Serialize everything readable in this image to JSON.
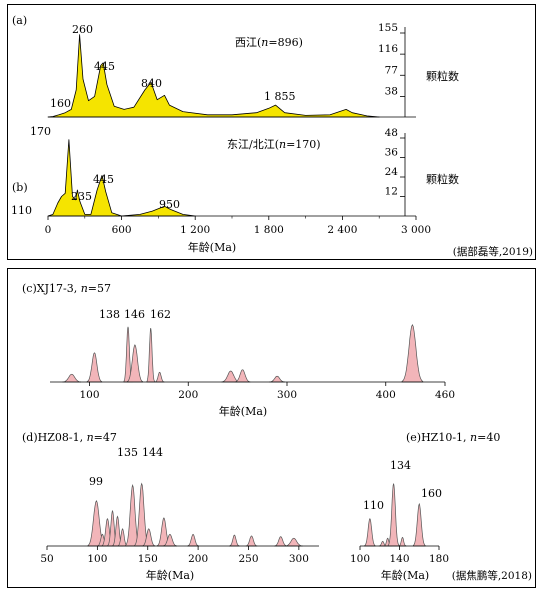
{
  "chart_data": [
    {
      "panel_id": "(a)",
      "type": "area",
      "title": "西江(n=896)",
      "fill": "#f5e400",
      "stroke": "#000000",
      "xlim": [
        0,
        3000
      ],
      "ylabel": "颗粒数",
      "y_ticks": [
        38,
        77,
        116,
        155
      ],
      "ylim": [
        0,
        155
      ],
      "peaks": [
        {
          "label": "160",
          "age": 160
        },
        {
          "label": "260",
          "age": 260
        },
        {
          "label": "445",
          "age": 445
        },
        {
          "label": "840",
          "age": 840
        },
        {
          "label": "1 855",
          "age": 1855
        }
      ],
      "curve": [
        [
          0,
          0
        ],
        [
          40,
          1
        ],
        [
          90,
          4
        ],
        [
          140,
          8
        ],
        [
          190,
          14
        ],
        [
          230,
          50
        ],
        [
          258,
          152
        ],
        [
          285,
          70
        ],
        [
          330,
          30
        ],
        [
          380,
          38
        ],
        [
          430,
          95
        ],
        [
          450,
          100
        ],
        [
          480,
          60
        ],
        [
          540,
          20
        ],
        [
          620,
          14
        ],
        [
          700,
          18
        ],
        [
          790,
          50
        ],
        [
          840,
          64
        ],
        [
          890,
          32
        ],
        [
          950,
          40
        ],
        [
          990,
          22
        ],
        [
          1100,
          10
        ],
        [
          1300,
          4
        ],
        [
          1500,
          4
        ],
        [
          1700,
          8
        ],
        [
          1800,
          16
        ],
        [
          1855,
          22
        ],
        [
          1930,
          8
        ],
        [
          2100,
          3
        ],
        [
          2300,
          4
        ],
        [
          2430,
          14
        ],
        [
          2480,
          8
        ],
        [
          2600,
          2
        ],
        [
          2700,
          0
        ]
      ]
    },
    {
      "panel_id": "(b)",
      "type": "area",
      "title": "东江/北江(n=170)",
      "fill": "#f5e400",
      "stroke": "#000000",
      "xlim": [
        0,
        3000
      ],
      "x_ticks": [
        "0",
        "600",
        "1 200",
        "1 800",
        "2 400",
        "3 000"
      ],
      "x_tick_values": [
        0,
        600,
        1200,
        1800,
        2400,
        3000
      ],
      "xlabel": "年龄(Ma)",
      "ylabel": "颗粒数",
      "y_ticks": [
        12,
        24,
        36,
        48
      ],
      "ylim": [
        0,
        48
      ],
      "peaks": [
        {
          "label": "110",
          "age": 110
        },
        {
          "label": "170",
          "age": 170
        },
        {
          "label": "235",
          "age": 235
        },
        {
          "label": "445",
          "age": 445
        },
        {
          "label": "950",
          "age": 950
        }
      ],
      "curve": [
        [
          0,
          0
        ],
        [
          40,
          1
        ],
        [
          80,
          8
        ],
        [
          110,
          12
        ],
        [
          140,
          14
        ],
        [
          170,
          50
        ],
        [
          200,
          12
        ],
        [
          225,
          10
        ],
        [
          240,
          16
        ],
        [
          260,
          9
        ],
        [
          300,
          1
        ],
        [
          350,
          1
        ],
        [
          400,
          16
        ],
        [
          440,
          25
        ],
        [
          470,
          15
        ],
        [
          520,
          2
        ],
        [
          600,
          0
        ],
        [
          750,
          1
        ],
        [
          850,
          3
        ],
        [
          950,
          6
        ],
        [
          1000,
          4
        ],
        [
          1100,
          1
        ],
        [
          1200,
          0
        ]
      ]
    },
    {
      "panel_id": "(c)",
      "type": "area",
      "title": "(c)XJ17-3, n=57",
      "fill": "#f2b5b9",
      "stroke": "#555555",
      "xlim": [
        60,
        460
      ],
      "x_ticks": [
        "100",
        "200",
        "300",
        "400",
        "460"
      ],
      "x_tick_values": [
        100,
        200,
        300,
        400,
        460
      ],
      "xlabel": "年龄(Ma)",
      "ylim": [
        0,
        10
      ],
      "peaks": [
        {
          "label": "138",
          "age": 138
        },
        {
          "label": "146",
          "age": 146
        },
        {
          "label": "162",
          "age": 162
        }
      ],
      "spikes": [
        [
          82,
          1.2,
          3
        ],
        [
          105,
          4.5,
          2.5
        ],
        [
          139,
          8.5,
          1.4
        ],
        [
          146,
          5.7,
          2.6
        ],
        [
          162,
          8.3,
          1.3
        ],
        [
          171,
          1.5,
          1.5
        ],
        [
          243,
          1.7,
          3
        ],
        [
          255,
          1.9,
          2.5
        ],
        [
          290,
          0.9,
          2.5
        ],
        [
          427,
          8.8,
          3.5
        ]
      ]
    },
    {
      "panel_id": "(d)",
      "type": "area",
      "title": "(d)HZ08-1, n=47",
      "fill": "#f2b5b9",
      "stroke": "#555555",
      "xlim": [
        50,
        320
      ],
      "x_ticks": [
        "50",
        "100",
        "150",
        "200",
        "250",
        "300"
      ],
      "x_tick_values": [
        50,
        100,
        150,
        200,
        250,
        300
      ],
      "xlabel": "年龄(Ma)",
      "ylim": [
        0,
        10
      ],
      "peaks": [
        {
          "label": "99",
          "age": 99
        },
        {
          "label": "135",
          "age": 135
        },
        {
          "label": "144",
          "age": 144
        }
      ],
      "spikes": [
        [
          99,
          5.8,
          2.8
        ],
        [
          105,
          1.5,
          1.6
        ],
        [
          110,
          3.5,
          1.8
        ],
        [
          115,
          4.5,
          1.6
        ],
        [
          120,
          3.8,
          1.6
        ],
        [
          125,
          2.2,
          1.5
        ],
        [
          135,
          7.8,
          2.3
        ],
        [
          144,
          8.0,
          2.3
        ],
        [
          151,
          2.2,
          2
        ],
        [
          166,
          3.6,
          2.2
        ],
        [
          172,
          1.5,
          2.2
        ],
        [
          195,
          1.5,
          1.8
        ],
        [
          236,
          1.4,
          1.6
        ],
        [
          253,
          1.3,
          1.8
        ],
        [
          282,
          1.2,
          2
        ],
        [
          295,
          1.0,
          2.8
        ]
      ]
    },
    {
      "panel_id": "(e)",
      "type": "area",
      "title": "(e)HZ10-1, n=40",
      "fill": "#f2b5b9",
      "stroke": "#555555",
      "xlim": [
        100,
        180
      ],
      "x_ticks": [
        "100",
        "140",
        "180"
      ],
      "x_tick_values": [
        100,
        140,
        180
      ],
      "xlabel": "年龄(Ma)",
      "ylim": [
        0,
        10
      ],
      "peaks": [
        {
          "label": "110",
          "age": 110
        },
        {
          "label": "134",
          "age": 134
        },
        {
          "label": "160",
          "age": 160
        }
      ],
      "spikes": [
        [
          110,
          3.5,
          1.8
        ],
        [
          123,
          0.6,
          1.2
        ],
        [
          128,
          1.0,
          1.2
        ],
        [
          134,
          8.0,
          1.8
        ],
        [
          143,
          1.1,
          1.2
        ],
        [
          160,
          5.4,
          2
        ]
      ]
    }
  ],
  "captions": {
    "panel_a": "(a)",
    "panel_b": "(b)",
    "source_top": "(据部磊等,2019)",
    "source_bottom": "(据焦鹏等,2018)"
  }
}
